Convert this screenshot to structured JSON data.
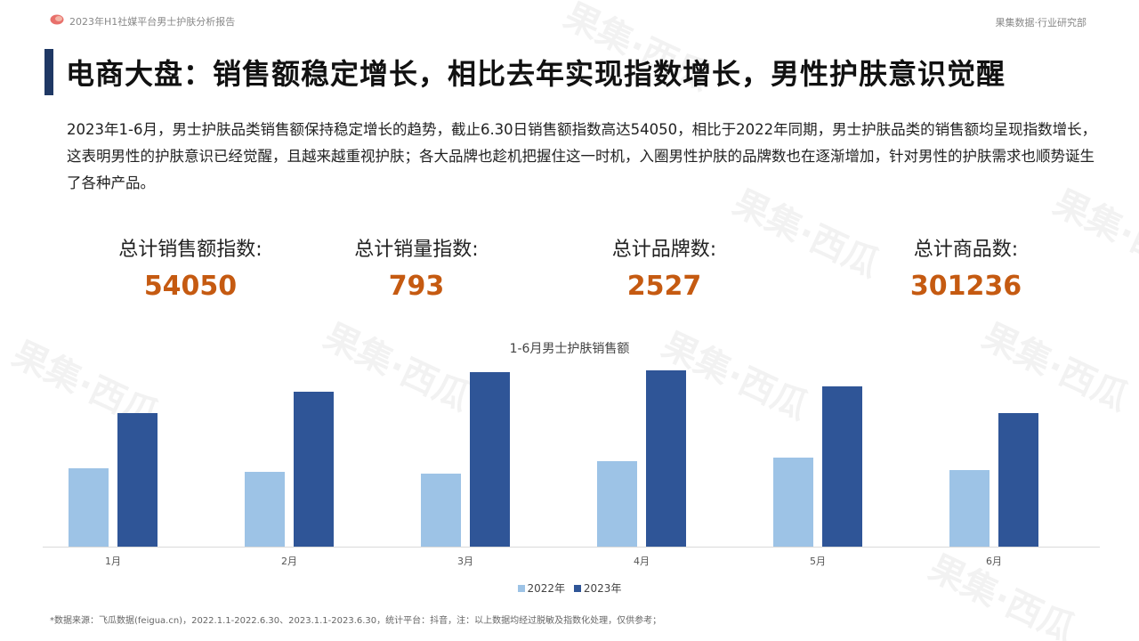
{
  "header": {
    "report_title": "2023年H1社媒平台男士护肤分析报告",
    "brand": "果集数据·行业研究部"
  },
  "watermark_text": "果集·西瓜",
  "page_title": "电商大盘：销售额稳定增长，相比去年实现指数增长，男性护肤意识觉醒",
  "intro": "2023年1-6月，男士护肤品类销售额保持稳定增长的趋势，截止6.30日销售额指数高达54050，相比于2022年同期，男士护肤品类的销售额均呈现指数增长，这表明男性的护肤意识已经觉醒，且越来越重视护肤；各大品牌也趁机把握住这一时机，入圈男性护肤的品牌数也在逐渐增加，针对男性的护肤需求也顺势诞生了各种产品。",
  "kpis": [
    {
      "label": "总计销售额指数:",
      "value": "54050"
    },
    {
      "label": "总计销量指数:",
      "value": "793"
    },
    {
      "label": "总计品牌数:",
      "value": "2527"
    },
    {
      "label": "总计商品数:",
      "value": "301236"
    }
  ],
  "colors": {
    "accent": "#c55a11",
    "title_bar": "#1f3864",
    "series_2022": "#9dc3e6",
    "series_2023": "#2f5597",
    "axis": "#d9d9d9"
  },
  "chart_data": {
    "type": "bar",
    "title": "1-6月男士护肤销售额",
    "categories": [
      "1月",
      "2月",
      "3月",
      "4月",
      "5月",
      "6月"
    ],
    "series": [
      {
        "name": "2022年",
        "color": "#9dc3e6",
        "values": [
          44,
          42,
          41,
          48,
          50,
          43
        ]
      },
      {
        "name": "2023年",
        "color": "#2f5597",
        "values": [
          75,
          87,
          98,
          99,
          90,
          75
        ]
      }
    ],
    "ylim": [
      0,
      100
    ],
    "grid": false,
    "legend_position": "bottom"
  },
  "footnote": "*数据来源：飞瓜数据(feigua.cn)，2022.1.1-2022.6.30、2023.1.1-2023.6.30，统计平台：抖音，注：以上数据均经过脱敏及指数化处理，仅供参考；"
}
